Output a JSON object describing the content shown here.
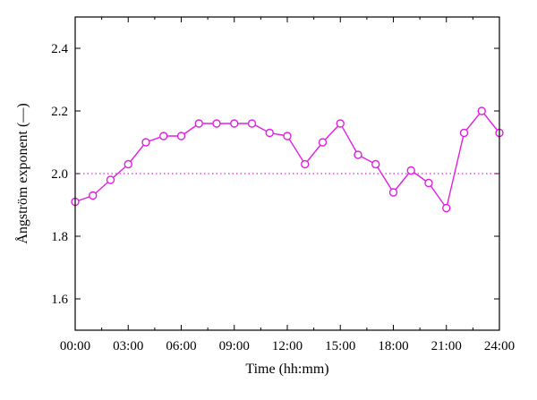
{
  "chart_data": {
    "type": "line",
    "xlabel": "Time (hh:mm)",
    "ylabel": "Ångström exponent (—)",
    "xlim": [
      0,
      24
    ],
    "ylim": [
      1.5,
      2.5
    ],
    "x_ticks": [
      0,
      3,
      6,
      9,
      12,
      15,
      18,
      21,
      24
    ],
    "x_tick_labels": [
      "00:00",
      "03:00",
      "06:00",
      "09:00",
      "12:00",
      "15:00",
      "18:00",
      "21:00",
      "24:00"
    ],
    "y_ticks": [
      1.6,
      1.8,
      2.0,
      2.2,
      2.4
    ],
    "y_tick_labels": [
      "1.6",
      "1.8",
      "2.0",
      "2.2",
      "2.4"
    ],
    "grid": false,
    "reference_line": {
      "y": 2.0,
      "style": "dotted"
    },
    "color": "#e020e0",
    "series": [
      {
        "x": [
          0,
          1,
          2,
          3,
          4,
          5,
          6,
          7,
          8,
          9,
          10,
          11,
          12,
          13,
          14,
          15,
          16,
          17,
          18,
          19,
          20,
          21,
          22,
          23,
          24
        ],
        "values": [
          1.91,
          1.93,
          1.98,
          2.03,
          2.1,
          2.12,
          2.12,
          2.16,
          2.16,
          2.16,
          2.16,
          2.13,
          2.12,
          2.03,
          2.1,
          2.16,
          2.06,
          2.03,
          1.94,
          2.01,
          1.97,
          1.89,
          2.13,
          2.2,
          2.13
        ]
      }
    ]
  }
}
